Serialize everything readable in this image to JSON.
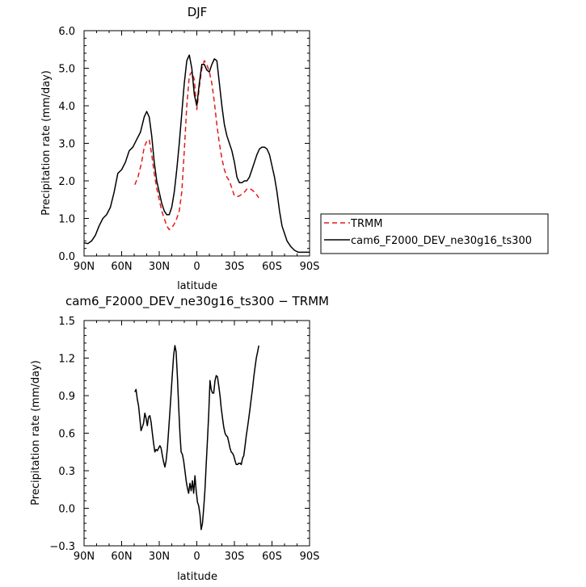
{
  "chart_data": [
    {
      "type": "line",
      "title": "DJF",
      "xlabel": "latitude",
      "ylabel": "Precipitation rate (mm/day)",
      "xlim": [
        -90,
        90
      ],
      "ylim": [
        0,
        6
      ],
      "xticks": [
        -90,
        -60,
        -30,
        0,
        30,
        60,
        90
      ],
      "xtick_labels": [
        "90N",
        "60N",
        "30N",
        "0",
        "30S",
        "60S",
        "90S"
      ],
      "yticks": [
        0,
        1,
        2,
        3,
        4,
        5,
        6
      ],
      "ytick_labels": [
        "0.0",
        "1.0",
        "2.0",
        "3.0",
        "4.0",
        "5.0",
        "6.0"
      ],
      "legend_position": "right",
      "series": [
        {
          "name": "TRMM",
          "color": "#e41a1c",
          "dash": "dashed",
          "x": [
            -49.5,
            -47,
            -44,
            -42,
            -40,
            -38,
            -36,
            -34,
            -32,
            -30,
            -28,
            -26,
            -24,
            -22,
            -20,
            -18,
            -16,
            -14,
            -12,
            -10,
            -8,
            -6,
            -4,
            -2,
            0,
            2,
            4,
            6,
            8,
            10,
            12,
            14,
            16,
            18,
            20,
            22,
            24,
            26,
            28,
            30,
            32,
            34,
            36,
            38,
            40,
            42,
            44,
            46,
            48,
            49.5
          ],
          "y": [
            1.9,
            2.1,
            2.5,
            2.9,
            3.05,
            3.1,
            2.7,
            2.2,
            1.8,
            1.5,
            1.2,
            1.0,
            0.8,
            0.7,
            0.75,
            0.85,
            1.0,
            1.2,
            1.7,
            2.8,
            4.0,
            4.8,
            4.9,
            4.7,
            3.9,
            4.5,
            5.0,
            5.2,
            5.1,
            4.9,
            4.6,
            4.1,
            3.5,
            3.0,
            2.6,
            2.3,
            2.1,
            2.0,
            1.8,
            1.6,
            1.58,
            1.6,
            1.65,
            1.7,
            1.78,
            1.8,
            1.76,
            1.7,
            1.62,
            1.55
          ]
        },
        {
          "name": "cam6_F2000_DEV_ne30g16_ts300",
          "color": "#000000",
          "dash": "solid",
          "x": [
            -90,
            -87,
            -84,
            -81,
            -78,
            -75,
            -72,
            -69,
            -66,
            -63,
            -60,
            -57,
            -54,
            -51,
            -48,
            -45,
            -42,
            -40,
            -38,
            -36,
            -34,
            -32,
            -30,
            -28,
            -26,
            -24,
            -22,
            -20,
            -18,
            -16,
            -14,
            -12,
            -10,
            -8,
            -6,
            -4,
            -2,
            0,
            2,
            4,
            6,
            8,
            10,
            12,
            14,
            16,
            18,
            20,
            22,
            24,
            26,
            28,
            30,
            32,
            34,
            36,
            38,
            40,
            42,
            44,
            46,
            48,
            50,
            52,
            54,
            56,
            58,
            60,
            62,
            64,
            66,
            68,
            70,
            72,
            75,
            78,
            81,
            84,
            87,
            90
          ],
          "y": [
            0.35,
            0.33,
            0.4,
            0.55,
            0.8,
            1.0,
            1.1,
            1.3,
            1.7,
            2.2,
            2.3,
            2.5,
            2.8,
            2.9,
            3.1,
            3.3,
            3.7,
            3.85,
            3.7,
            3.2,
            2.5,
            2.0,
            1.7,
            1.4,
            1.2,
            1.1,
            1.1,
            1.3,
            1.7,
            2.3,
            3.0,
            3.8,
            4.6,
            5.2,
            5.35,
            5.0,
            4.3,
            4.0,
            4.6,
            5.1,
            5.1,
            4.95,
            4.9,
            5.1,
            5.25,
            5.2,
            4.6,
            4.0,
            3.5,
            3.2,
            3.0,
            2.8,
            2.5,
            2.1,
            1.95,
            1.95,
            2.0,
            2.0,
            2.1,
            2.3,
            2.5,
            2.7,
            2.85,
            2.9,
            2.9,
            2.85,
            2.7,
            2.4,
            2.1,
            1.7,
            1.2,
            0.8,
            0.6,
            0.4,
            0.25,
            0.15,
            0.1,
            0.1,
            0.1,
            0.1
          ]
        }
      ]
    },
    {
      "type": "line",
      "title": "cam6_F2000_DEV_ne30g16_ts300 − TRMM",
      "xlabel": "latitude",
      "ylabel": "Precipitation rate (mm/day)",
      "xlim": [
        -90,
        90
      ],
      "ylim": [
        -0.3,
        1.5
      ],
      "xticks": [
        -90,
        -60,
        -30,
        0,
        30,
        60,
        90
      ],
      "xtick_labels": [
        "90N",
        "60N",
        "30N",
        "0",
        "30S",
        "60S",
        "90S"
      ],
      "yticks": [
        -0.3,
        0.0,
        0.3,
        0.6,
        0.9,
        1.2,
        1.5
      ],
      "ytick_labels": [
        "−0.3",
        "0.0",
        "0.3",
        "0.6",
        "0.9",
        "1.2",
        "1.5"
      ],
      "series": [
        {
          "color": "#000000",
          "dash": "solid",
          "x": [
            -49.5,
            -48.5,
            -47.5,
            -46.5,
            -45.5,
            -44.5,
            -43.5,
            -42.5,
            -41.5,
            -40.5,
            -39.5,
            -38.5,
            -37.5,
            -36.5,
            -35.5,
            -34.5,
            -33.5,
            -32.5,
            -31.5,
            -30.5,
            -29.5,
            -28.5,
            -27.5,
            -26.5,
            -25.5,
            -24.5,
            -23.5,
            -22.5,
            -21.5,
            -20.5,
            -19.5,
            -18.5,
            -17.5,
            -16.5,
            -15.5,
            -14.5,
            -13.5,
            -12.5,
            -11.5,
            -10.5,
            -9.5,
            -8.5,
            -7.5,
            -6.5,
            -5.5,
            -4.5,
            -3.5,
            -2.5,
            -1.5,
            -0.5,
            0.5,
            1.5,
            2.5,
            3.5,
            4.5,
            5.5,
            6.5,
            7.5,
            8.5,
            9.5,
            10.5,
            11.5,
            12.5,
            13.5,
            14.5,
            15.5,
            16.5,
            17.5,
            18.5,
            19.5,
            20.5,
            21.5,
            22.5,
            23.5,
            24.5,
            25.5,
            26.5,
            27.5,
            28.5,
            29.5,
            30.5,
            31.5,
            32.5,
            33.5,
            34.5,
            35.5,
            36.5,
            37.5,
            38.5,
            39.5,
            40.5,
            41.5,
            42.5,
            43.5,
            44.5,
            45.5,
            46.5,
            47.5,
            48.5,
            49.5
          ],
          "y": [
            0.93,
            0.95,
            0.87,
            0.82,
            0.72,
            0.62,
            0.65,
            0.68,
            0.76,
            0.72,
            0.66,
            0.73,
            0.74,
            0.69,
            0.6,
            0.52,
            0.45,
            0.47,
            0.46,
            0.48,
            0.5,
            0.48,
            0.42,
            0.37,
            0.33,
            0.38,
            0.48,
            0.62,
            0.77,
            0.92,
            1.08,
            1.22,
            1.3,
            1.25,
            1.05,
            0.82,
            0.6,
            0.45,
            0.43,
            0.38,
            0.3,
            0.22,
            0.16,
            0.12,
            0.2,
            0.14,
            0.22,
            0.12,
            0.26,
            0.14,
            0.05,
            0.02,
            -0.05,
            -0.17,
            -0.12,
            0.0,
            0.15,
            0.35,
            0.55,
            0.75,
            1.02,
            0.95,
            0.92,
            0.92,
            1.02,
            1.06,
            1.05,
            0.98,
            0.9,
            0.8,
            0.72,
            0.65,
            0.6,
            0.58,
            0.57,
            0.53,
            0.48,
            0.45,
            0.44,
            0.42,
            0.38,
            0.35,
            0.35,
            0.36,
            0.36,
            0.35,
            0.4,
            0.42,
            0.5,
            0.58,
            0.65,
            0.72,
            0.8,
            0.88,
            0.96,
            1.05,
            1.13,
            1.2,
            1.25,
            1.3
          ]
        }
      ]
    }
  ]
}
